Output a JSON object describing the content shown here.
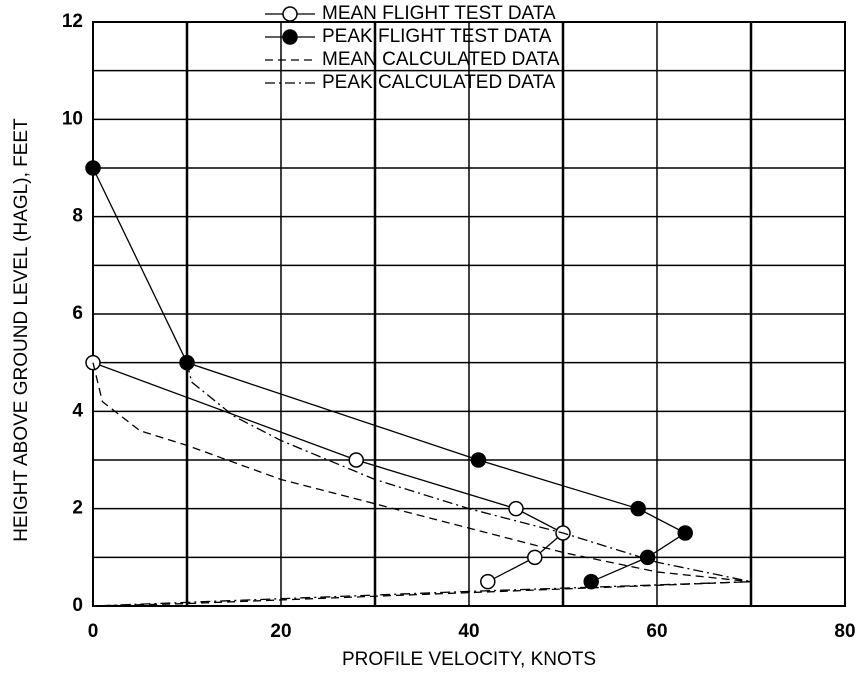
{
  "chart_data": {
    "type": "line",
    "xlabel": "PROFILE VELOCITY, KNOTS",
    "ylabel": "HEIGHT ABOVE GROUND LEVEL (HAGL), FEET",
    "xlim": [
      0,
      80
    ],
    "xticks": [
      0,
      20,
      40,
      60,
      80
    ],
    "xminor": [
      10,
      30,
      50,
      70
    ],
    "ylim": [
      0,
      12
    ],
    "yticks": [
      0,
      2,
      4,
      6,
      8,
      10,
      12
    ],
    "yminor": [
      1,
      3,
      5,
      7,
      9,
      11
    ],
    "grid": true,
    "legend": "upper center",
    "series": [
      {
        "name": "MEAN FLIGHT TEST DATA",
        "color": "#000",
        "line_style": "solid",
        "marker": "open-circle",
        "x": [
          0,
          28,
          45,
          50,
          47,
          42
        ],
        "values": [
          5,
          3,
          2,
          1.5,
          1,
          0.5
        ]
      },
      {
        "name": "PEAK FLIGHT TEST DATA",
        "color": "#000",
        "line_style": "solid",
        "marker": "filled-circle",
        "x": [
          0,
          10,
          41,
          58,
          63,
          59,
          53
        ],
        "values": [
          9,
          5,
          3,
          2,
          1.5,
          1,
          0.5
        ]
      },
      {
        "name": "MEAN CALCULATED DATA",
        "color": "#000",
        "line_style": "dashed",
        "x": [
          0,
          1,
          5,
          10,
          20,
          30,
          40,
          50,
          60,
          70,
          50,
          30,
          10,
          0
        ],
        "values": [
          5,
          4.2,
          3.6,
          3.3,
          2.6,
          2.1,
          1.6,
          1.1,
          0.7,
          0.5,
          0.35,
          0.2,
          0.05,
          0
        ]
      },
      {
        "name": "PEAK CALCULATED DATA",
        "color": "#000",
        "line_style": "dashdot",
        "x": [
          10,
          10.5,
          15,
          20,
          30,
          40,
          50,
          60,
          70,
          40,
          20,
          0
        ],
        "values": [
          5,
          4.6,
          3.9,
          3.4,
          2.6,
          2.0,
          1.5,
          0.9,
          0.5,
          0.3,
          0.15,
          0
        ]
      }
    ]
  }
}
